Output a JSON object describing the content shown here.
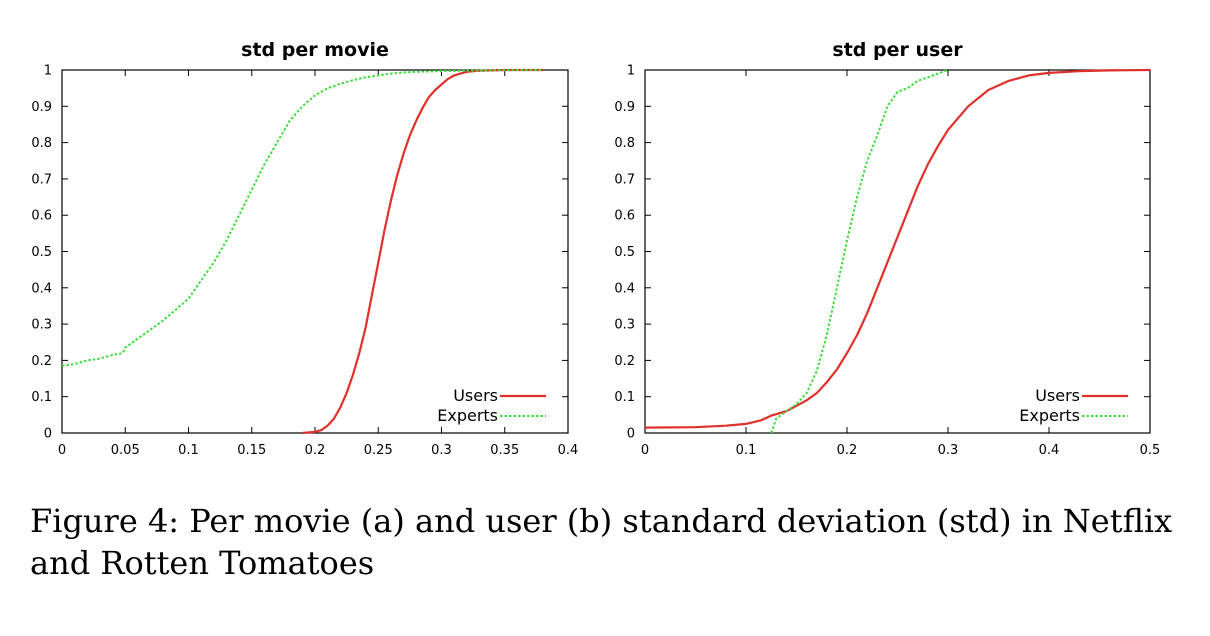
{
  "caption": "Figure 4: Per movie (a) and user (b) standard deviation (std) in Netflix and Rotten Tomatoes",
  "colors": {
    "users": "#e0302a",
    "experts": "#3ddc3d"
  },
  "chart_data": [
    {
      "type": "line",
      "title": "std per movie",
      "xlabel": "",
      "ylabel": "",
      "xlim": [
        0,
        0.4
      ],
      "ylim": [
        0,
        1
      ],
      "xticks": [
        0,
        0.05,
        0.1,
        0.15,
        0.2,
        0.25,
        0.3,
        0.35,
        0.4
      ],
      "xtick_labels": [
        "0",
        "0.05",
        "0.1",
        "0.15",
        "0.2",
        "0.25",
        "0.3",
        "0.35",
        "0.4"
      ],
      "yticks": [
        0,
        0.1,
        0.2,
        0.3,
        0.4,
        0.5,
        0.6,
        0.7,
        0.8,
        0.9,
        1
      ],
      "ytick_labels": [
        "0",
        "0.1",
        "0.2",
        "0.3",
        "0.4",
        "0.5",
        "0.6",
        "0.7",
        "0.8",
        "0.9",
        "1"
      ],
      "legend_position": "bottom-right",
      "series": [
        {
          "name": "Users",
          "style": "solid",
          "x": [
            0.19,
            0.2,
            0.205,
            0.21,
            0.215,
            0.22,
            0.225,
            0.23,
            0.235,
            0.24,
            0.245,
            0.25,
            0.255,
            0.26,
            0.265,
            0.27,
            0.275,
            0.28,
            0.285,
            0.29,
            0.295,
            0.3,
            0.305,
            0.31,
            0.315,
            0.32,
            0.33,
            0.34,
            0.35,
            0.36,
            0.38
          ],
          "y": [
            0,
            0.003,
            0.008,
            0.02,
            0.04,
            0.07,
            0.11,
            0.16,
            0.22,
            0.29,
            0.38,
            0.47,
            0.56,
            0.64,
            0.71,
            0.77,
            0.82,
            0.86,
            0.895,
            0.925,
            0.945,
            0.96,
            0.975,
            0.985,
            0.99,
            0.995,
            0.998,
            0.999,
            1,
            1,
            1
          ]
        },
        {
          "name": "Experts",
          "style": "dotted",
          "x": [
            0,
            0.01,
            0.02,
            0.03,
            0.04,
            0.048,
            0.05,
            0.06,
            0.07,
            0.08,
            0.09,
            0.1,
            0.11,
            0.12,
            0.13,
            0.14,
            0.15,
            0.16,
            0.17,
            0.18,
            0.19,
            0.2,
            0.21,
            0.22,
            0.23,
            0.24,
            0.25,
            0.26,
            0.27,
            0.28,
            0.3,
            0.32,
            0.34,
            0.36,
            0.38
          ],
          "y": [
            0.185,
            0.19,
            0.2,
            0.205,
            0.215,
            0.22,
            0.235,
            0.26,
            0.285,
            0.31,
            0.34,
            0.37,
            0.42,
            0.47,
            0.53,
            0.6,
            0.67,
            0.74,
            0.8,
            0.86,
            0.9,
            0.93,
            0.95,
            0.962,
            0.972,
            0.98,
            0.985,
            0.99,
            0.993,
            0.995,
            0.997,
            0.998,
            0.999,
            1,
            1
          ]
        }
      ]
    },
    {
      "type": "line",
      "title": "std per user",
      "xlabel": "",
      "ylabel": "",
      "xlim": [
        0,
        0.5
      ],
      "ylim": [
        0,
        1
      ],
      "xticks": [
        0,
        0.1,
        0.2,
        0.3,
        0.4,
        0.5
      ],
      "xtick_labels": [
        "0",
        "0.1",
        "0.2",
        "0.3",
        "0.4",
        "0.5"
      ],
      "yticks": [
        0,
        0.1,
        0.2,
        0.3,
        0.4,
        0.5,
        0.6,
        0.7,
        0.8,
        0.9,
        1
      ],
      "ytick_labels": [
        "0",
        "0.1",
        "0.2",
        "0.3",
        "0.4",
        "0.5",
        "0.6",
        "0.7",
        "0.8",
        "0.9",
        "1"
      ],
      "legend_position": "bottom-right",
      "series": [
        {
          "name": "Users",
          "style": "solid",
          "x": [
            0,
            0.05,
            0.08,
            0.1,
            0.115,
            0.125,
            0.14,
            0.15,
            0.16,
            0.17,
            0.18,
            0.19,
            0.2,
            0.21,
            0.22,
            0.23,
            0.24,
            0.25,
            0.26,
            0.27,
            0.28,
            0.29,
            0.3,
            0.32,
            0.34,
            0.36,
            0.38,
            0.4,
            0.43,
            0.46,
            0.5
          ],
          "y": [
            0.015,
            0.016,
            0.02,
            0.025,
            0.035,
            0.048,
            0.06,
            0.075,
            0.09,
            0.11,
            0.14,
            0.175,
            0.22,
            0.27,
            0.33,
            0.4,
            0.47,
            0.54,
            0.61,
            0.68,
            0.74,
            0.79,
            0.835,
            0.9,
            0.945,
            0.97,
            0.985,
            0.992,
            0.997,
            0.999,
            1
          ]
        },
        {
          "name": "Experts",
          "style": "dotted",
          "x": [
            0.125,
            0.13,
            0.14,
            0.15,
            0.16,
            0.17,
            0.18,
            0.19,
            0.2,
            0.21,
            0.22,
            0.23,
            0.24,
            0.25,
            0.26,
            0.27,
            0.28,
            0.29,
            0.3
          ],
          "y": [
            0,
            0.04,
            0.06,
            0.08,
            0.11,
            0.17,
            0.27,
            0.4,
            0.53,
            0.65,
            0.75,
            0.82,
            0.9,
            0.94,
            0.95,
            0.97,
            0.98,
            0.99,
            1
          ]
        }
      ]
    }
  ]
}
